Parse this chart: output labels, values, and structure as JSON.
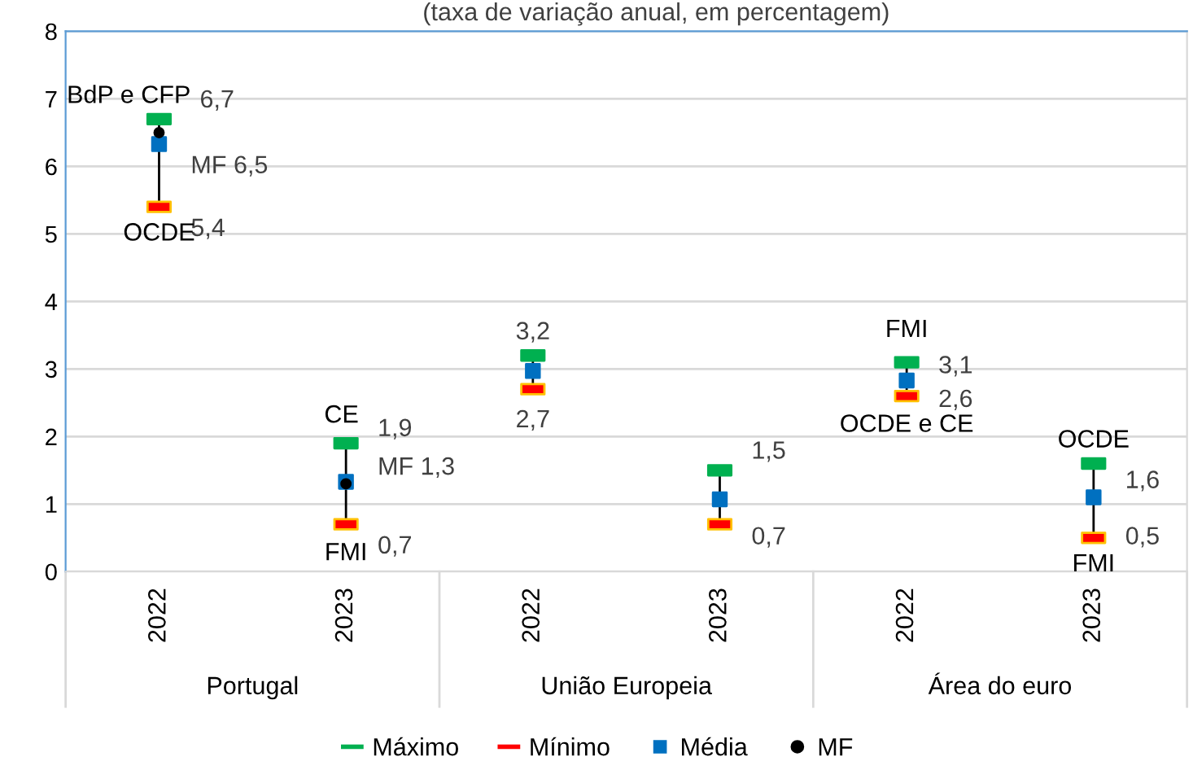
{
  "chart_data": {
    "type": "scatter",
    "title": "(taxa de variação anual, em percentagem)",
    "categories": [
      "2022",
      "2023",
      "2022",
      "2023",
      "2022",
      "2023"
    ],
    "series": [
      {
        "name": "Máximo",
        "type": "scatter",
        "marker": "square",
        "color": "#00b050",
        "values": [
          6.7,
          1.9,
          3.2,
          1.5,
          3.1,
          1.6
        ],
        "value_labels": [
          "6,7",
          "1,9",
          "3,2",
          "1,5",
          "3,1",
          "1,6"
        ]
      },
      {
        "name": "Mínimo",
        "type": "scatter",
        "marker": "square",
        "color": "#ff0000",
        "values": [
          5.4,
          0.7,
          2.7,
          0.7,
          2.6,
          0.5
        ],
        "value_labels": [
          "5,4",
          "0,7",
          "2,7",
          "0,7",
          "2,6",
          "0,5"
        ]
      },
      {
        "name": "Média",
        "type": "scatter",
        "marker": "square",
        "color": "#0070c0",
        "values": [
          6.33,
          1.33,
          2.97,
          1.07,
          2.83,
          1.1
        ]
      },
      {
        "name": "MF",
        "type": "scatter",
        "marker": "circle",
        "color": "#000000",
        "values": [
          6.5,
          1.3,
          null,
          null,
          null,
          null
        ],
        "value_labels": [
          "MF 6,5",
          "MF 1,3",
          null,
          null,
          null,
          null
        ]
      }
    ],
    "annotations": [
      "BdP e CFP",
      "OCDE",
      "CE",
      "FMI",
      "FMI",
      "OCDE e CE",
      "OCDE",
      "FMI",
      "Portugal",
      "União Europeia",
      "Área do euro"
    ],
    "ylim": [
      0,
      8
    ],
    "yticks": [
      0,
      1,
      2,
      3,
      4,
      5,
      6,
      7,
      8
    ],
    "grid": "y",
    "legend": "bottom"
  }
}
